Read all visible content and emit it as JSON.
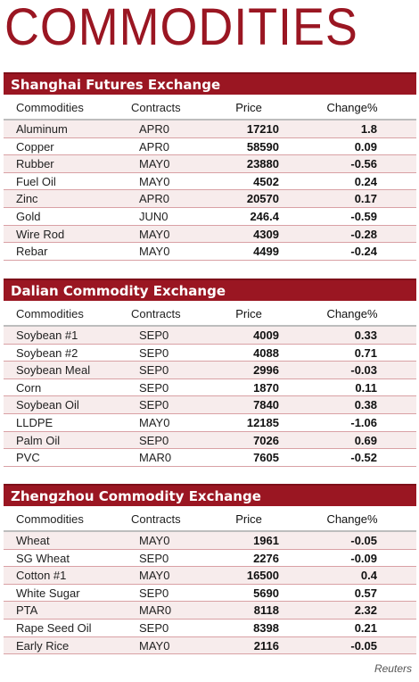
{
  "title": "COMMODITIES",
  "columns": {
    "name": "Commodities",
    "contract": "Contracts",
    "price": "Price",
    "change": "Change%"
  },
  "sections": [
    {
      "name": "Shanghai Futures Exchange",
      "rows": [
        {
          "name": "Aluminum",
          "contract": "APR0",
          "price": "17210",
          "change": "1.8"
        },
        {
          "name": "Copper",
          "contract": "APR0",
          "price": "58590",
          "change": "0.09"
        },
        {
          "name": "Rubber",
          "contract": "MAY0",
          "price": "23880",
          "change": "-0.56"
        },
        {
          "name": "Fuel Oil",
          "contract": "MAY0",
          "price": "4502",
          "change": "0.24"
        },
        {
          "name": "Zinc",
          "contract": "APR0",
          "price": "20570",
          "change": "0.17"
        },
        {
          "name": "Gold",
          "contract": "JUN0",
          "price": "246.4",
          "change": "-0.59"
        },
        {
          "name": "Wire Rod",
          "contract": "MAY0",
          "price": "4309",
          "change": "-0.28"
        },
        {
          "name": "Rebar",
          "contract": "MAY0",
          "price": "4499",
          "change": "-0.24"
        }
      ]
    },
    {
      "name": "Dalian Commodity Exchange",
      "rows": [
        {
          "name": "Soybean #1",
          "contract": "SEP0",
          "price": "4009",
          "change": "0.33"
        },
        {
          "name": "Soybean #2",
          "contract": "SEP0",
          "price": "4088",
          "change": "0.71"
        },
        {
          "name": "Soybean Meal",
          "contract": "SEP0",
          "price": "2996",
          "change": "-0.03"
        },
        {
          "name": "Corn",
          "contract": "SEP0",
          "price": "1870",
          "change": "0.11"
        },
        {
          "name": "Soybean Oil",
          "contract": "SEP0",
          "price": "7840",
          "change": "0.38"
        },
        {
          "name": "LLDPE",
          "contract": "MAY0",
          "price": "12185",
          "change": "-1.06"
        },
        {
          "name": "Palm Oil",
          "contract": "SEP0",
          "price": "7026",
          "change": "0.69"
        },
        {
          "name": "PVC",
          "contract": "MAR0",
          "price": "7605",
          "change": "-0.52"
        }
      ]
    },
    {
      "name": "Zhengzhou Commodity Exchange",
      "rows": [
        {
          "name": "Wheat",
          "contract": "MAY0",
          "price": "1961",
          "change": "-0.05"
        },
        {
          "name": "SG Wheat",
          "contract": "SEP0",
          "price": "2276",
          "change": "-0.09"
        },
        {
          "name": "Cotton #1",
          "contract": "MAY0",
          "price": "16500",
          "change": "0.4"
        },
        {
          "name": "White Sugar",
          "contract": "SEP0",
          "price": "5690",
          "change": "0.57"
        },
        {
          "name": "PTA",
          "contract": "MAR0",
          "price": "8118",
          "change": "2.32"
        },
        {
          "name": "Rape Seed Oil",
          "contract": "SEP0",
          "price": "8398",
          "change": "0.21"
        },
        {
          "name": "Early Rice",
          "contract": "MAY0",
          "price": "2116",
          "change": "-0.05"
        }
      ]
    }
  ],
  "source": "Reuters",
  "colors": {
    "accent": "#9a1622",
    "row_tint": "#f7ecec"
  }
}
